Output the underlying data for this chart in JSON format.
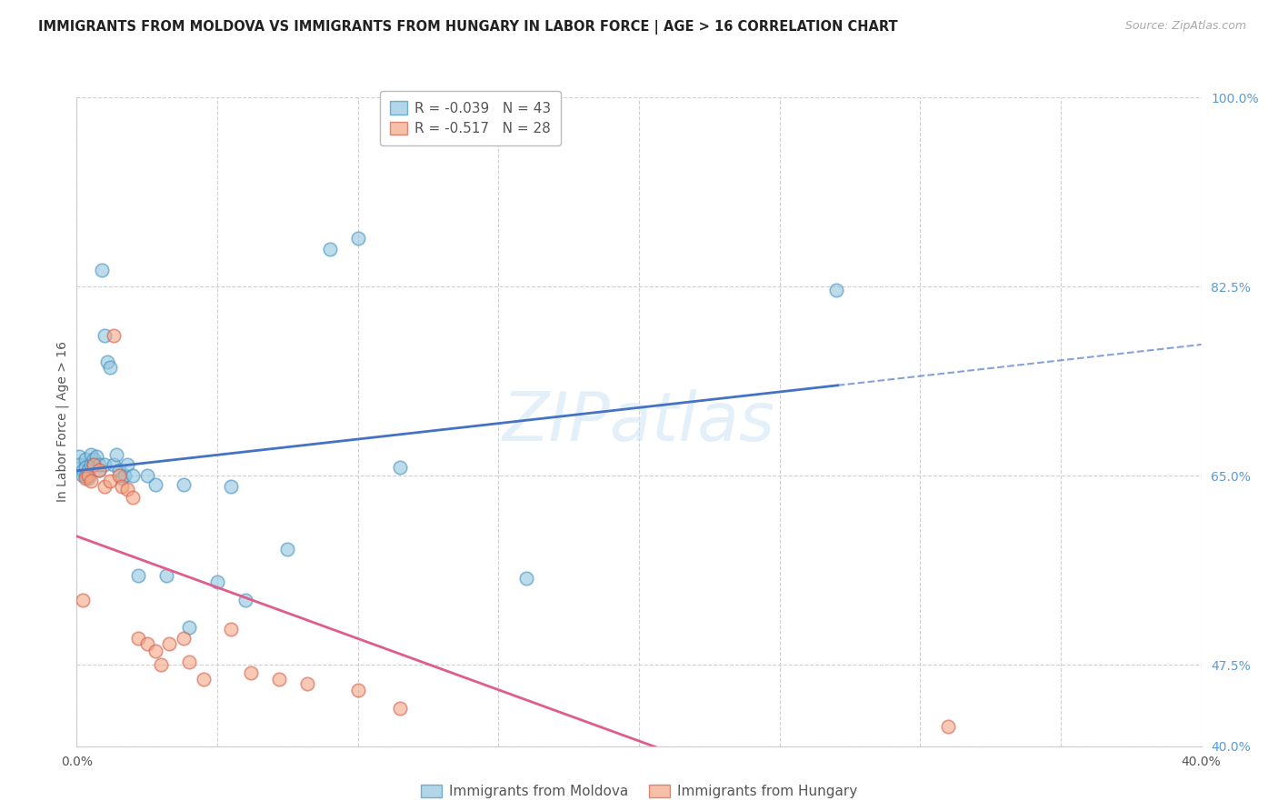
{
  "title": "IMMIGRANTS FROM MOLDOVA VS IMMIGRANTS FROM HUNGARY IN LABOR FORCE | AGE > 16 CORRELATION CHART",
  "source": "Source: ZipAtlas.com",
  "ylabel": "In Labor Force | Age > 16",
  "x_min": 0.0,
  "x_max": 0.4,
  "y_min": 0.4,
  "y_max": 1.0,
  "moldova_color": "#92c5de",
  "moldova_edge_color": "#4393c3",
  "hungary_color": "#f4a582",
  "hungary_edge_color": "#d6604d",
  "moldova_R": -0.039,
  "moldova_N": 43,
  "hungary_R": -0.517,
  "hungary_N": 28,
  "moldova_x": [
    0.001,
    0.001,
    0.002,
    0.002,
    0.003,
    0.003,
    0.003,
    0.004,
    0.004,
    0.005,
    0.005,
    0.006,
    0.006,
    0.007,
    0.008,
    0.008,
    0.009,
    0.01,
    0.01,
    0.011,
    0.012,
    0.013,
    0.014,
    0.015,
    0.016,
    0.017,
    0.018,
    0.02,
    0.022,
    0.025,
    0.028,
    0.032,
    0.038,
    0.04,
    0.05,
    0.055,
    0.06,
    0.075,
    0.09,
    0.1,
    0.115,
    0.16,
    0.27
  ],
  "moldova_y": [
    0.668,
    0.66,
    0.655,
    0.65,
    0.665,
    0.658,
    0.65,
    0.655,
    0.648,
    0.67,
    0.66,
    0.665,
    0.66,
    0.668,
    0.655,
    0.66,
    0.84,
    0.78,
    0.66,
    0.755,
    0.75,
    0.66,
    0.67,
    0.655,
    0.648,
    0.65,
    0.66,
    0.65,
    0.558,
    0.65,
    0.642,
    0.558,
    0.642,
    0.51,
    0.552,
    0.64,
    0.535,
    0.582,
    0.86,
    0.87,
    0.658,
    0.555,
    0.822
  ],
  "hungary_x": [
    0.002,
    0.003,
    0.004,
    0.005,
    0.006,
    0.008,
    0.01,
    0.012,
    0.013,
    0.015,
    0.016,
    0.018,
    0.02,
    0.022,
    0.025,
    0.028,
    0.03,
    0.033,
    0.038,
    0.04,
    0.045,
    0.055,
    0.062,
    0.072,
    0.082,
    0.1,
    0.115,
    0.31
  ],
  "hungary_y": [
    0.535,
    0.648,
    0.65,
    0.645,
    0.66,
    0.655,
    0.64,
    0.645,
    0.78,
    0.65,
    0.64,
    0.638,
    0.63,
    0.5,
    0.495,
    0.488,
    0.475,
    0.495,
    0.5,
    0.478,
    0.462,
    0.508,
    0.468,
    0.462,
    0.458,
    0.452,
    0.435,
    0.418
  ],
  "line_blue_color": "#4472c4",
  "line_pink_color": "#e05c8a",
  "grid_color": "#d0d0d0",
  "background_color": "#ffffff",
  "watermark": "ZIPatlas",
  "y_ticks": [
    0.4,
    0.475,
    0.55,
    0.625,
    0.65,
    0.7,
    0.75,
    0.825,
    0.9,
    1.0
  ],
  "y_labels": [
    "40.0%",
    "47.5%",
    "",
    "",
    "65.0%",
    "",
    "",
    "82.5%",
    "",
    "100.0%"
  ],
  "x_ticks": [
    0.0,
    0.05,
    0.1,
    0.15,
    0.2,
    0.25,
    0.3,
    0.35,
    0.4
  ],
  "x_labels": [
    "0.0%",
    "",
    "",
    "",
    "",
    "",
    "",
    "",
    "40.0%"
  ]
}
